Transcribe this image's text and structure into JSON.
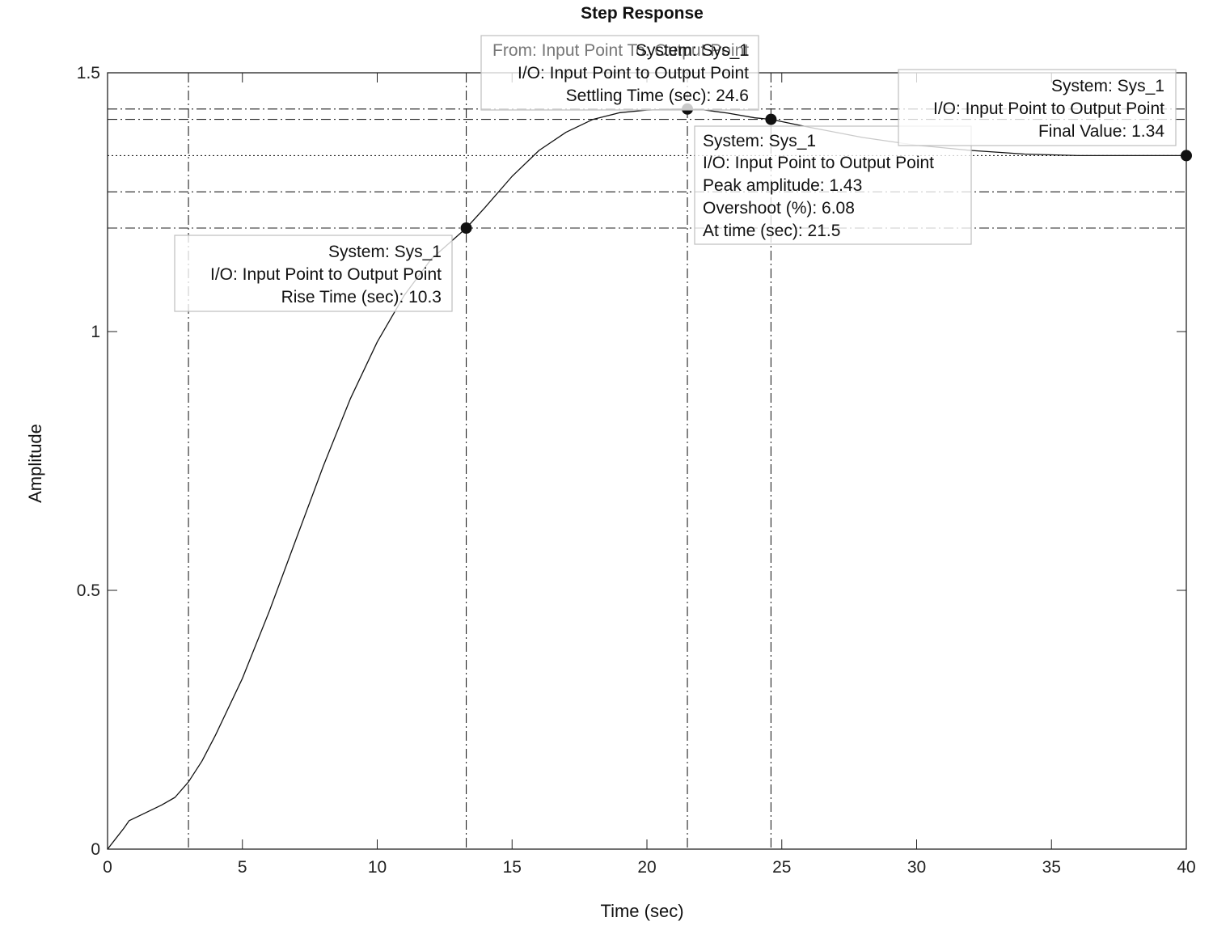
{
  "chart_data": {
    "type": "line",
    "title": "Step Response",
    "xlabel": "Time (sec)",
    "ylabel": "Amplitude",
    "xlim": [
      0,
      40
    ],
    "ylim": [
      0,
      1.5
    ],
    "xticks": [
      0,
      5,
      10,
      15,
      20,
      25,
      30,
      35,
      40
    ],
    "yticks": [
      0,
      0.5,
      1,
      1.5
    ],
    "x_tick_labels": [
      "0",
      "5",
      "10",
      "15",
      "20",
      "25",
      "30",
      "35",
      "40"
    ],
    "y_tick_labels": [
      "0",
      "0.5",
      "1",
      "1.5"
    ],
    "grid": false,
    "series": [
      {
        "x": [
          0,
          0.3,
          0.6,
          0.8,
          1.2,
          2,
          2.5,
          3,
          3.5,
          4,
          5,
          6,
          7,
          8,
          9,
          10,
          11,
          12,
          13.3,
          14,
          15,
          16,
          17,
          18,
          19,
          20,
          21,
          21.5,
          22,
          23,
          24,
          24.6,
          26,
          28,
          30,
          32,
          34,
          36,
          38,
          40
        ],
        "y": [
          0,
          0.02,
          0.04,
          0.055,
          0.065,
          0.085,
          0.1,
          0.13,
          0.17,
          0.22,
          0.33,
          0.46,
          0.6,
          0.74,
          0.87,
          0.98,
          1.07,
          1.14,
          1.2,
          1.24,
          1.3,
          1.35,
          1.385,
          1.41,
          1.423,
          1.428,
          1.43,
          1.43,
          1.429,
          1.422,
          1.413,
          1.41,
          1.395,
          1.375,
          1.36,
          1.35,
          1.343,
          1.34,
          1.34,
          1.34
        ]
      }
    ],
    "reference_lines": {
      "horizontal": [
        1.43,
        1.41,
        1.34,
        1.27,
        1.2
      ],
      "vertical": [
        3.0,
        13.3,
        21.5,
        24.6
      ]
    },
    "markers": [
      {
        "x": 13.3,
        "y": 1.2
      },
      {
        "x": 21.5,
        "y": 1.43
      },
      {
        "x": 24.6,
        "y": 1.41
      },
      {
        "x": 40,
        "y": 1.34
      }
    ],
    "annotations": {
      "rise": {
        "line1": "System: Sys_1",
        "line2": "I/O: Input Point to Output Point",
        "line3": "Rise Time (sec): 10.3"
      },
      "settling": {
        "faint": "From: Input Point  To: Output Point",
        "line1": "System: Sys_1",
        "line2": "I/O: Input Point to Output Point",
        "line3": "Settling Time (sec): 24.6"
      },
      "peak": {
        "line1": "System: Sys_1",
        "line2": "I/O: Input Point to Output Point",
        "line3": "Peak amplitude: 1.43",
        "line4": "Overshoot (%): 6.08",
        "line5": "At time (sec): 21.5"
      },
      "final": {
        "line1": "System: Sys_1",
        "line2": "I/O: Input Point to Output Point",
        "line3": "Final Value: 1.34"
      }
    }
  }
}
